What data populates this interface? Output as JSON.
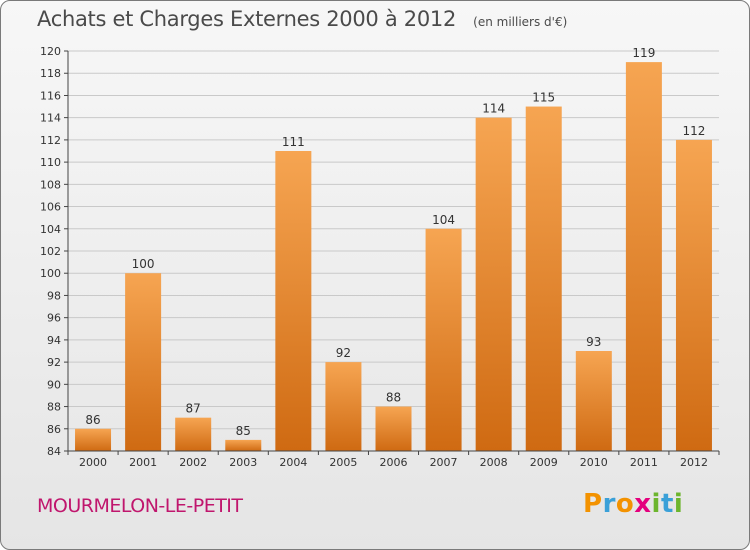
{
  "header": {
    "title": "Achats et Charges Externes 2000 à 2012",
    "unit": "(en milliers d'€)"
  },
  "footer": {
    "commune": "MOURMELON-LE-PETIT",
    "logo": {
      "letters": [
        "P",
        "r",
        "o",
        "x",
        "i",
        "t",
        "i"
      ],
      "colors": [
        "#f39200",
        "#3aa0d8",
        "#f39200",
        "#e4007d",
        "#6cb52d",
        "#3aa0d8",
        "#6cb52d"
      ]
    }
  },
  "colors": {
    "bar_light": "#f6a552",
    "bar_dark": "#cf6a12",
    "grid": "#c9c9c9",
    "axis": "#444444",
    "text": "#333333",
    "commune": "#c0166d"
  },
  "chart_data": {
    "type": "bar",
    "categories": [
      "2000",
      "2001",
      "2002",
      "2003",
      "2004",
      "2005",
      "2006",
      "2007",
      "2008",
      "2009",
      "2010",
      "2011",
      "2012"
    ],
    "values": [
      86,
      100,
      87,
      85,
      111,
      92,
      88,
      104,
      114,
      115,
      93,
      119,
      112
    ],
    "data_labels": [
      "86",
      "100",
      "87",
      "85",
      "111",
      "92",
      "88",
      "104",
      "114",
      "115",
      "93",
      "119",
      "112"
    ],
    "ylim": [
      84,
      120
    ],
    "yticks": [
      84,
      86,
      88,
      90,
      92,
      94,
      96,
      98,
      100,
      102,
      104,
      106,
      108,
      110,
      112,
      114,
      116,
      118,
      120
    ],
    "grid": true,
    "title": "Achats et Charges Externes 2000 à 2012",
    "xlabel": "",
    "ylabel": ""
  }
}
